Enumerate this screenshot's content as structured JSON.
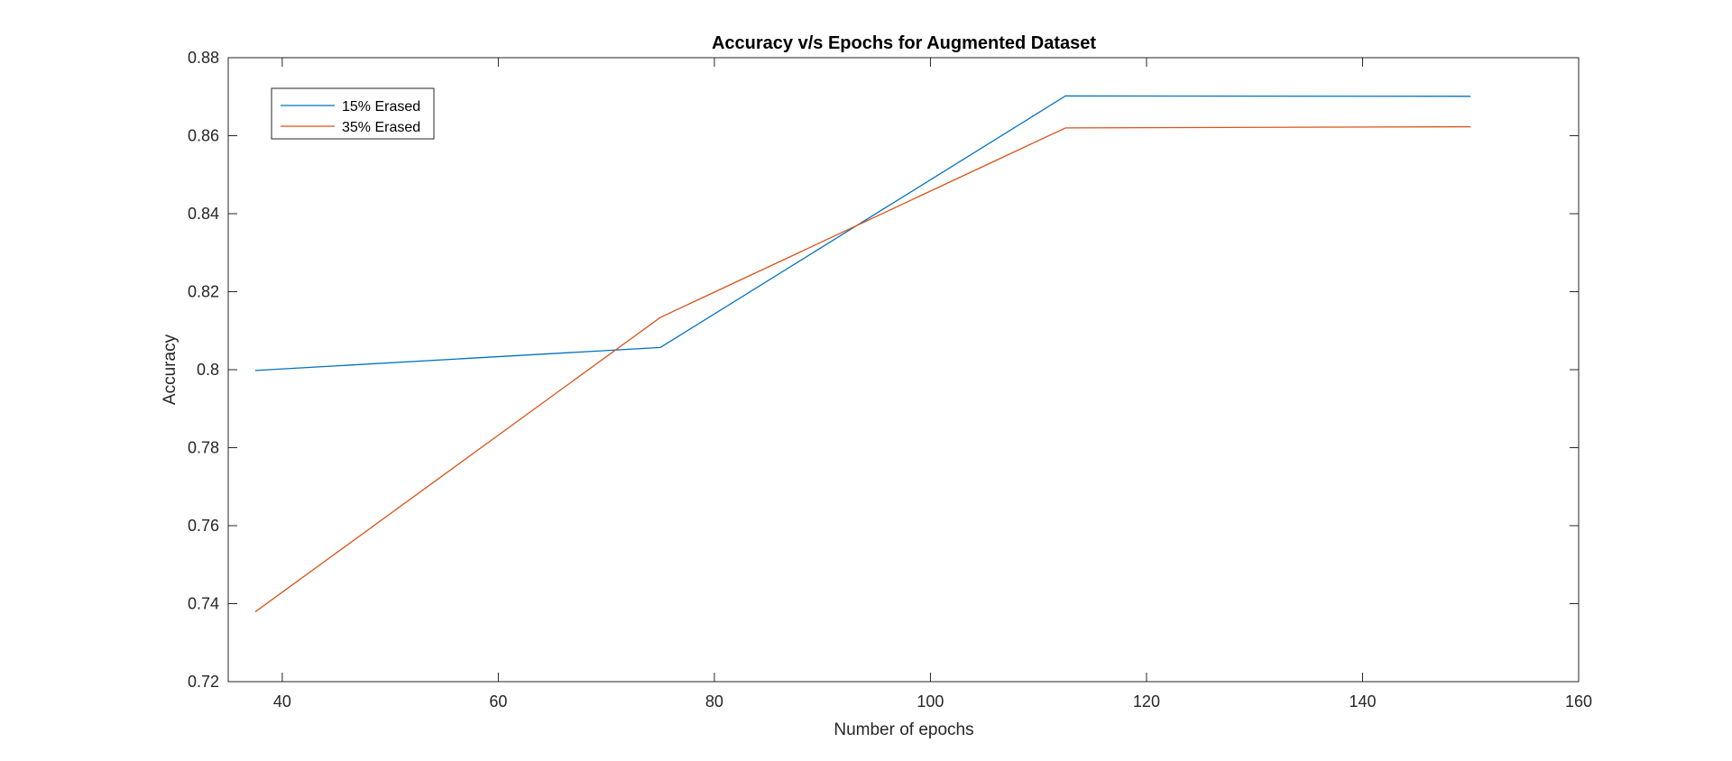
{
  "chart_data": {
    "type": "line",
    "title": "Accuracy v/s Epochs for Augmented Dataset",
    "xlabel": "Number of epochs",
    "ylabel": "Accuracy",
    "xlim": [
      35,
      160
    ],
    "ylim": [
      0.72,
      0.88
    ],
    "x_ticks": [
      40,
      60,
      80,
      100,
      120,
      140,
      160
    ],
    "x_tick_labels": [
      "40",
      "60",
      "80",
      "100",
      "120",
      "140",
      "160"
    ],
    "y_ticks": [
      0.72,
      0.74,
      0.76,
      0.78,
      0.8,
      0.82,
      0.84,
      0.86,
      0.88
    ],
    "y_tick_labels": [
      "0.72",
      "0.74",
      "0.76",
      "0.78",
      "0.8",
      "0.82",
      "0.84",
      "0.86",
      "0.88"
    ],
    "grid": false,
    "legend_position": "top-left",
    "x": [
      37.5,
      75,
      112.5,
      150
    ],
    "series": [
      {
        "name": "15% Erased",
        "color": "#0072BD",
        "values": [
          0.7998,
          0.8057,
          0.8702,
          0.8701
        ]
      },
      {
        "name": "35% Erased",
        "color": "#D95319",
        "values": [
          0.7379,
          0.8134,
          0.862,
          0.8623
        ]
      }
    ]
  }
}
